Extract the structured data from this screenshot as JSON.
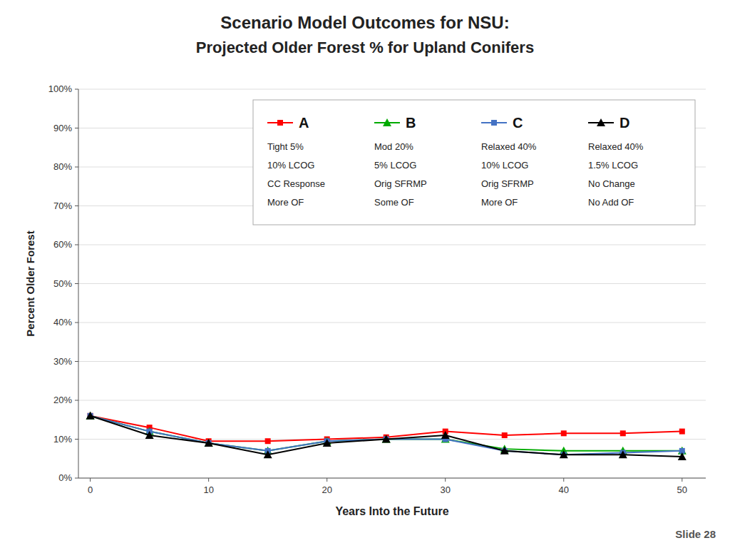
{
  "chart_data": {
    "type": "line",
    "title": "Scenario Model Outcomes for NSU:",
    "subtitle": "Projected Older Forest % for Upland Conifers",
    "x_label": "Years Into the Future",
    "y_label": "Percent Older Forest",
    "annotations": [
      "Slide 28"
    ],
    "x": [
      0,
      5,
      10,
      15,
      20,
      25,
      30,
      35,
      40,
      45,
      50
    ],
    "series": [
      {
        "name": "A",
        "color": "#FF0000",
        "marker": "square",
        "values": [
          16,
          13,
          9.5,
          9.5,
          10,
          10.5,
          12,
          11,
          11.5,
          11.5,
          12
        ],
        "description": [
          "Tight 5%",
          "10% LCOG",
          "CC Response",
          "More OF"
        ]
      },
      {
        "name": "B",
        "color": "#00AA00",
        "marker": "triangle",
        "values": [
          16,
          12,
          9,
          7,
          9.5,
          10,
          10,
          7.5,
          7,
          7,
          7
        ],
        "description": [
          "Mod 20%",
          "5% LCOG",
          "Orig SFRMP",
          "Some OF"
        ]
      },
      {
        "name": "C",
        "color": "#4472C4",
        "marker": "square",
        "values": [
          16,
          12,
          9,
          7,
          9.5,
          10,
          10,
          7,
          6,
          6.5,
          7
        ],
        "description": [
          "Relaxed 40%",
          "10% LCOG",
          "Orig SFRMP",
          "More OF"
        ]
      },
      {
        "name": "D",
        "color": "#000000",
        "marker": "triangle",
        "values": [
          16,
          11,
          9,
          6,
          9,
          10,
          11,
          7,
          6,
          6,
          5.5
        ],
        "description": [
          "Relaxed 40%",
          "1.5% LCOG",
          "No Change",
          "No Add OF"
        ]
      }
    ],
    "xlim": [
      -1,
      52
    ],
    "xticks": [
      0,
      10,
      20,
      30,
      40,
      50
    ],
    "ylim": [
      0,
      100
    ],
    "yticks": [
      {
        "value": 0,
        "label": "0%"
      },
      {
        "value": 10,
        "label": "10%"
      },
      {
        "value": 20,
        "label": "20%"
      },
      {
        "value": 30,
        "label": "30%"
      },
      {
        "value": 40,
        "label": "40%"
      },
      {
        "value": 50,
        "label": "50%"
      },
      {
        "value": 60,
        "label": "60%"
      },
      {
        "value": 70,
        "label": "70%"
      },
      {
        "value": 80,
        "label": "80%"
      },
      {
        "value": 90,
        "label": "90%"
      },
      {
        "value": 100,
        "label": "100%"
      }
    ],
    "grid": true,
    "legend": "upper right"
  }
}
